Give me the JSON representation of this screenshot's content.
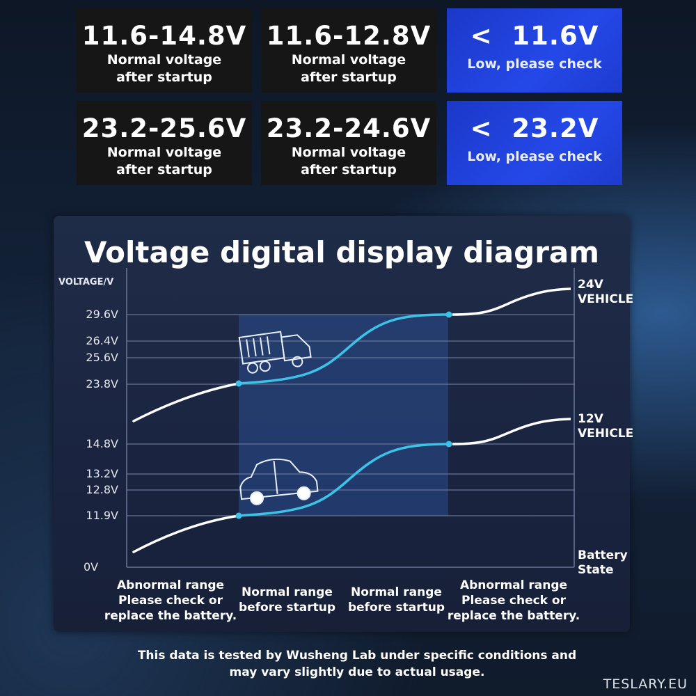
{
  "cards": [
    {
      "value": "11.6-14.8V",
      "desc": "Normal voltage after startup",
      "style": "dark"
    },
    {
      "value": "11.6-12.8V",
      "desc": "Normal voltage after startup",
      "style": "dark"
    },
    {
      "value": "<  11.6V",
      "desc": "Low, please check",
      "style": "blue"
    },
    {
      "value": "23.2-25.6V",
      "desc": "Normal voltage after startup",
      "style": "dark"
    },
    {
      "value": "23.2-24.6V",
      "desc": "Normal voltage after startup",
      "style": "dark"
    },
    {
      "value": "<  23.2V",
      "desc": "Low, please check",
      "style": "blue"
    }
  ],
  "diagram": {
    "title": "Voltage digital display diagram",
    "y_axis_label": "VOLTAGE/V",
    "ticks": [
      "29.6V",
      "26.4V",
      "25.6V",
      "23.8V",
      "14.8V",
      "13.2V",
      "12.8V",
      "11.9V",
      "0V"
    ],
    "series": [
      {
        "label": "24V VEHICLE",
        "icon": "truck-icon"
      },
      {
        "label": "12V VEHICLE",
        "icon": "car-icon"
      }
    ],
    "x_axis_label": "Battery State",
    "ranges": [
      "Abnormal range Please check or replace the battery.",
      "Normal range before startup",
      "Normal range before startup",
      "Abnormal range Please check or replace the battery."
    ],
    "colors": {
      "normal_curve": "#3cc3e8",
      "abnormal_curve": "#ffffff",
      "highlight": "#2a4f8f"
    }
  },
  "footer": "This data is tested by Wusheng Lab under specific conditions and may vary slightly due to actual usage.",
  "brand": "TESLARY.EU"
}
